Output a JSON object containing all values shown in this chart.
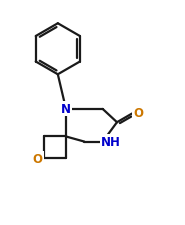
{
  "bg_color": "#ffffff",
  "bond_color": "#1a1a1a",
  "O_color": "#cc7700",
  "N_color": "#0000cc",
  "lw": 1.6,
  "figsize": [
    1.85,
    2.26
  ],
  "dpi": 100,
  "xlim": [
    0,
    9
  ],
  "ylim": [
    0,
    11
  ]
}
